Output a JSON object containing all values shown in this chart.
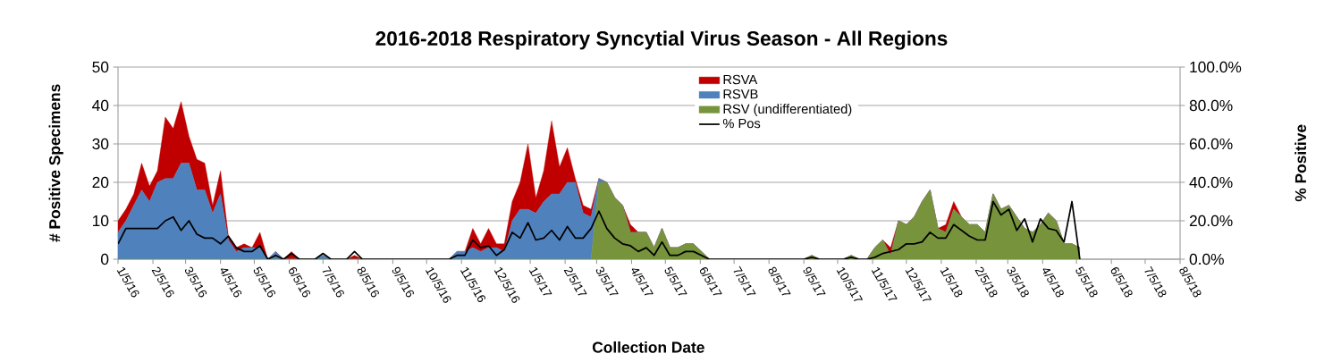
{
  "chart_data": {
    "type": "area",
    "stacked": true,
    "title": "2016-2018 Respiratory Syncytial Virus Season - All Regions",
    "xlabel": "Collection Date",
    "ylabel": "# Positive Specimens",
    "y2label": "% Positive",
    "x": [
      "2016-01-05",
      "2016-01-12",
      "2016-01-19",
      "2016-01-26",
      "2016-02-02",
      "2016-02-09",
      "2016-02-16",
      "2016-02-23",
      "2016-03-01",
      "2016-03-08",
      "2016-03-15",
      "2016-03-22",
      "2016-03-29",
      "2016-04-05",
      "2016-04-12",
      "2016-04-19",
      "2016-04-26",
      "2016-05-03",
      "2016-05-10",
      "2016-05-17",
      "2016-05-24",
      "2016-05-31",
      "2016-06-07",
      "2016-06-14",
      "2016-06-21",
      "2016-06-28",
      "2016-07-05",
      "2016-07-12",
      "2016-07-19",
      "2016-07-26",
      "2016-08-02",
      "2016-08-09",
      "2016-08-16",
      "2016-08-23",
      "2016-08-30",
      "2016-09-06",
      "2016-09-13",
      "2016-09-20",
      "2016-09-27",
      "2016-10-04",
      "2016-10-11",
      "2016-10-18",
      "2016-10-25",
      "2016-11-01",
      "2016-11-08",
      "2016-11-15",
      "2016-11-22",
      "2016-11-29",
      "2016-12-06",
      "2016-12-13",
      "2016-12-20",
      "2016-12-27",
      "2017-01-03",
      "2017-01-10",
      "2017-01-17",
      "2017-01-24",
      "2017-01-31",
      "2017-02-07",
      "2017-02-14",
      "2017-02-21",
      "2017-02-28",
      "2017-03-07",
      "2017-03-14",
      "2017-03-21",
      "2017-03-28",
      "2017-04-04",
      "2017-04-11",
      "2017-04-18",
      "2017-04-25",
      "2017-05-02",
      "2017-05-09",
      "2017-05-16",
      "2017-05-23",
      "2017-05-30",
      "2017-06-06",
      "2017-06-13",
      "2017-06-20",
      "2017-06-27",
      "2017-07-04",
      "2017-07-11",
      "2017-07-18",
      "2017-07-25",
      "2017-08-01",
      "2017-08-08",
      "2017-08-15",
      "2017-08-22",
      "2017-08-29",
      "2017-09-05",
      "2017-09-12",
      "2017-09-19",
      "2017-09-26",
      "2017-10-03",
      "2017-10-10",
      "2017-10-17",
      "2017-10-24",
      "2017-10-31",
      "2017-11-07",
      "2017-11-14",
      "2017-11-21",
      "2017-11-28",
      "2017-12-05",
      "2017-12-12",
      "2017-12-19",
      "2017-12-26",
      "2018-01-02",
      "2018-01-09",
      "2018-01-16",
      "2018-01-23",
      "2018-01-30",
      "2018-02-06",
      "2018-02-13",
      "2018-02-20",
      "2018-02-27",
      "2018-03-06",
      "2018-03-13",
      "2018-03-20",
      "2018-03-27",
      "2018-04-03",
      "2018-04-10",
      "2018-04-17",
      "2018-04-24",
      "2018-05-01",
      "2018-05-08"
    ],
    "series": [
      {
        "name": "RSV (undifferentiated)",
        "color": "#77933c",
        "values": [
          0,
          0,
          0,
          0,
          0,
          0,
          0,
          0,
          0,
          0,
          0,
          0,
          0,
          0,
          0,
          0,
          0,
          0,
          0,
          0,
          0,
          0,
          0,
          0,
          0,
          0,
          0,
          0,
          0,
          0,
          0,
          0,
          0,
          0,
          0,
          0,
          0,
          0,
          0,
          0,
          0,
          0,
          0,
          0,
          0,
          0,
          0,
          0,
          0,
          0,
          0,
          0,
          0,
          0,
          0,
          0,
          0,
          0,
          0,
          0,
          0,
          20,
          20,
          16,
          14,
          7,
          7,
          7,
          3,
          8,
          3,
          3,
          4,
          4,
          2,
          0,
          0,
          0,
          0,
          0,
          0,
          0,
          0,
          0,
          0,
          0,
          0,
          0,
          1,
          0,
          0,
          0,
          0,
          1,
          0,
          0,
          3,
          5,
          1,
          10,
          9,
          11,
          15,
          18,
          8,
          7,
          13,
          11,
          9,
          9,
          7,
          17,
          13,
          14,
          11,
          8,
          7,
          9,
          12,
          10,
          4,
          4,
          3
        ]
      },
      {
        "name": "RSVB",
        "color": "#4f81bd",
        "values": [
          7,
          10,
          14,
          18,
          15,
          20,
          21,
          21,
          25,
          25,
          18,
          18,
          12,
          17,
          5,
          2,
          3,
          3,
          3,
          0,
          2,
          0,
          0,
          0,
          0,
          0,
          1,
          0,
          0,
          0,
          0,
          0,
          0,
          0,
          0,
          0,
          0,
          0,
          0,
          0,
          0,
          0,
          0,
          2,
          2,
          3,
          2,
          3,
          3,
          2,
          10,
          13,
          13,
          12,
          15,
          17,
          17,
          20,
          20,
          12,
          11,
          1,
          0,
          0,
          0,
          0,
          0,
          0,
          0,
          0,
          0,
          0,
          0,
          0,
          0,
          0,
          0,
          0,
          0,
          0,
          0,
          0,
          0,
          0,
          0,
          0,
          0,
          0,
          0,
          0,
          0,
          0,
          0,
          0,
          0,
          0,
          0,
          0,
          0,
          0,
          0,
          0,
          0,
          0,
          0,
          0,
          0,
          0,
          0,
          0,
          0,
          0,
          0,
          0,
          0,
          0,
          0,
          0,
          0,
          0,
          0,
          0,
          0
        ]
      },
      {
        "name": "RSVA",
        "color": "#c00000",
        "values": [
          3,
          3,
          3,
          7,
          4,
          3,
          16,
          13,
          16,
          7,
          8,
          7,
          2,
          6,
          1,
          1,
          1,
          0,
          4,
          0,
          0,
          0,
          2,
          0,
          0,
          0,
          0,
          0,
          0,
          0,
          1,
          0,
          0,
          0,
          0,
          0,
          0,
          0,
          0,
          0,
          0,
          0,
          0,
          0,
          0,
          5,
          2,
          5,
          1,
          2,
          5,
          7,
          17,
          4,
          8,
          19,
          7,
          9,
          1,
          2,
          2,
          0,
          0,
          0,
          0,
          2,
          0,
          0,
          0,
          0,
          0,
          0,
          0,
          0,
          0,
          0,
          0,
          0,
          0,
          0,
          0,
          0,
          0,
          0,
          0,
          0,
          0,
          0,
          0,
          0,
          0,
          0,
          0,
          0,
          0,
          0,
          0,
          0,
          2,
          0,
          0,
          0,
          0,
          0,
          0,
          2,
          2,
          0,
          0,
          0,
          0,
          0,
          0,
          0,
          0,
          0,
          0,
          0,
          0,
          0,
          0,
          0,
          0
        ]
      },
      {
        "name": "% Pos",
        "color": "#000000",
        "type": "line",
        "axis": "y2",
        "values": [
          8,
          16,
          16,
          16,
          16,
          16,
          20,
          22,
          15,
          20,
          13,
          11,
          11,
          8,
          12,
          6,
          4,
          4,
          7,
          0,
          2,
          0,
          3,
          0,
          0,
          0,
          3,
          0,
          0,
          0,
          4,
          0,
          0,
          0,
          0,
          0,
          0,
          0,
          0,
          0,
          0,
          0,
          0,
          2,
          2,
          10,
          6,
          7,
          2,
          5,
          14,
          11,
          19,
          10,
          11,
          15,
          10,
          17,
          11,
          11,
          16,
          25,
          16,
          11,
          8,
          7,
          4,
          6,
          2,
          9,
          2,
          2,
          4,
          4,
          2,
          0,
          0,
          0,
          0,
          0,
          0,
          0,
          0,
          0,
          0,
          0,
          0,
          0,
          1,
          0,
          0,
          0,
          0,
          1,
          0,
          0,
          1,
          3,
          4,
          5,
          8,
          8,
          9,
          14,
          11,
          11,
          18,
          15,
          12,
          10,
          10,
          30,
          23,
          26,
          15,
          21,
          9,
          21,
          16,
          15,
          9,
          30,
          0
        ]
      }
    ],
    "xlim": [
      "2016-01-05",
      "2018-08-05"
    ],
    "xticks": [
      {
        "value": "2016-01-05",
        "label": "1/5/16"
      },
      {
        "value": "2016-02-05",
        "label": "2/5/16"
      },
      {
        "value": "2016-03-05",
        "label": "3/5/16"
      },
      {
        "value": "2016-04-05",
        "label": "4/5/16"
      },
      {
        "value": "2016-05-05",
        "label": "5/5/16"
      },
      {
        "value": "2016-06-05",
        "label": "6/5/16"
      },
      {
        "value": "2016-07-05",
        "label": "7/5/16"
      },
      {
        "value": "2016-08-05",
        "label": "8/5/16"
      },
      {
        "value": "2016-09-05",
        "label": "9/5/16"
      },
      {
        "value": "2016-10-05",
        "label": "10/5/16"
      },
      {
        "value": "2016-11-05",
        "label": "11/5/16"
      },
      {
        "value": "2016-12-05",
        "label": "12/5/16"
      },
      {
        "value": "2017-01-05",
        "label": "1/5/17"
      },
      {
        "value": "2017-02-05",
        "label": "2/5/17"
      },
      {
        "value": "2017-03-05",
        "label": "3/5/17"
      },
      {
        "value": "2017-04-05",
        "label": "4/5/17"
      },
      {
        "value": "2017-05-05",
        "label": "5/5/17"
      },
      {
        "value": "2017-06-05",
        "label": "6/5/17"
      },
      {
        "value": "2017-07-05",
        "label": "7/5/17"
      },
      {
        "value": "2017-08-05",
        "label": "8/5/17"
      },
      {
        "value": "2017-09-05",
        "label": "9/5/17"
      },
      {
        "value": "2017-10-05",
        "label": "10/5/17"
      },
      {
        "value": "2017-11-05",
        "label": "11/5/17"
      },
      {
        "value": "2017-12-05",
        "label": "12/5/17"
      },
      {
        "value": "2018-01-05",
        "label": "1/5/18"
      },
      {
        "value": "2018-02-05",
        "label": "2/5/18"
      },
      {
        "value": "2018-03-05",
        "label": "3/5/18"
      },
      {
        "value": "2018-04-05",
        "label": "4/5/18"
      },
      {
        "value": "2018-05-05",
        "label": "5/5/18"
      },
      {
        "value": "2018-06-05",
        "label": "6/5/18"
      },
      {
        "value": "2018-07-05",
        "label": "7/5/18"
      },
      {
        "value": "2018-08-05",
        "label": "8/5/18"
      }
    ],
    "ylim": [
      0,
      50
    ],
    "yticks": [
      0,
      10,
      20,
      30,
      40,
      50
    ],
    "y2lim": [
      0,
      100
    ],
    "y2ticks": [
      {
        "value": 0,
        "label": "0.0%"
      },
      {
        "value": 20,
        "label": "20.0%"
      },
      {
        "value": 40,
        "label": "40.0%"
      },
      {
        "value": 60,
        "label": "60.0%"
      },
      {
        "value": 80,
        "label": "80.0%"
      },
      {
        "value": 100,
        "label": "100.0%"
      }
    ],
    "grid": "y",
    "legend": "top"
  }
}
